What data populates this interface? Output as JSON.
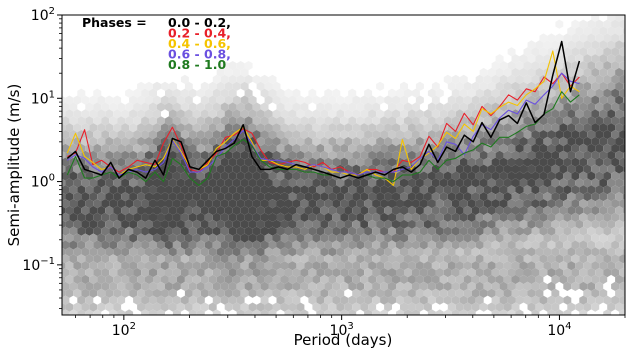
{
  "chart_data": {
    "type": "line",
    "xlabel": "Period (days)",
    "ylabel": "Semi-amplitude (m/s)",
    "xscale": "log",
    "yscale": "log",
    "xlim": [
      52,
      20000
    ],
    "ylim": [
      0.025,
      100
    ],
    "x_ticks": [
      {
        "value": 100,
        "base": "10",
        "exp": "2"
      },
      {
        "value": 1000,
        "base": "10",
        "exp": "3"
      },
      {
        "value": 10000,
        "base": "10",
        "exp": "4"
      }
    ],
    "y_ticks": [
      {
        "value": 0.1,
        "base": "10",
        "exp": "−1"
      },
      {
        "value": 1,
        "base": "10",
        "exp": "0"
      },
      {
        "value": 10,
        "base": "10",
        "exp": "1"
      },
      {
        "value": 100,
        "base": "10",
        "exp": "2"
      }
    ],
    "background": "hexbin density of individual measurements (grayscale)",
    "legend": {
      "position": "top-left",
      "title": "Phases = ",
      "entries": [
        {
          "label": "0.0 - 0.2,",
          "color": "#000000"
        },
        {
          "label": "0.2 - 0.4,",
          "color": "#e8202a"
        },
        {
          "label": "0.4 - 0.6,",
          "color": "#f5c400"
        },
        {
          "label": "0.6 - 0.8,",
          "color": "#6a50e0"
        },
        {
          "label": "0.8 - 1.0",
          "color": "#1f7a1f"
        }
      ]
    },
    "series": [
      {
        "color": "#000000",
        "x": [
          55,
          60,
          66,
          72,
          79,
          87,
          95,
          105,
          115,
          126,
          139,
          152,
          167,
          183,
          201,
          221,
          243,
          266,
          293,
          321,
          353,
          387,
          425,
          467,
          513,
          563,
          618,
          679,
          746,
          819,
          899,
          987,
          1084,
          1190,
          1307,
          1435,
          1576,
          1731,
          1900,
          2087,
          2291,
          2516,
          2763,
          3034,
          3331,
          3658,
          4017,
          4411,
          4843,
          5318,
          5840,
          6413,
          7042,
          7732,
          8491,
          9324,
          10238,
          11242,
          12345
        ],
        "values": [
          1.9,
          2.3,
          1.4,
          1.3,
          1.2,
          1.7,
          1.1,
          1.4,
          1.3,
          1.1,
          1.8,
          1.2,
          3.3,
          3.0,
          1.5,
          1.4,
          1.8,
          2.3,
          2.5,
          2.9,
          4.8,
          2.0,
          1.4,
          1.4,
          1.5,
          1.4,
          1.6,
          1.5,
          1.4,
          1.3,
          1.2,
          1.1,
          1.2,
          1.1,
          1.2,
          1.3,
          1.2,
          1.4,
          1.5,
          1.3,
          1.6,
          2.8,
          1.7,
          2.6,
          2.3,
          3.6,
          3.0,
          5.1,
          3.4,
          5.5,
          6.2,
          5.0,
          8.8,
          5.1,
          6.4,
          19,
          48,
          12,
          28
        ]
      },
      {
        "color": "#e8202a",
        "x": [
          55,
          60,
          66,
          72,
          79,
          87,
          95,
          105,
          115,
          126,
          139,
          152,
          167,
          183,
          201,
          221,
          243,
          266,
          293,
          321,
          353,
          387,
          425,
          467,
          513,
          563,
          618,
          679,
          746,
          819,
          899,
          987,
          1084,
          1190,
          1307,
          1435,
          1576,
          1731,
          1900,
          2087,
          2291,
          2516,
          2763,
          3034,
          3331,
          3658,
          4017,
          4411,
          4843,
          5318,
          5840,
          6413,
          7042,
          7732,
          8491,
          9324,
          10238,
          11242,
          12345
        ],
        "values": [
          2.0,
          2.2,
          4.2,
          1.6,
          1.8,
          1.5,
          1.3,
          1.5,
          1.8,
          1.7,
          1.6,
          2.9,
          4.5,
          2.7,
          1.4,
          1.3,
          1.7,
          2.2,
          3.4,
          3.6,
          4.3,
          3.8,
          2.4,
          1.7,
          1.6,
          1.7,
          1.8,
          1.7,
          1.5,
          1.7,
          1.4,
          1.5,
          1.3,
          1.2,
          1.4,
          1.4,
          1.3,
          1.3,
          1.8,
          1.7,
          2.0,
          3.5,
          2.6,
          5.0,
          4.0,
          6.6,
          4.8,
          8.0,
          6.2,
          8.0,
          11,
          9.5,
          13,
          12,
          18,
          15,
          20,
          14,
          18
        ]
      },
      {
        "color": "#f5c400",
        "x": [
          55,
          60,
          66,
          72,
          79,
          87,
          95,
          105,
          115,
          126,
          139,
          152,
          167,
          183,
          201,
          221,
          243,
          266,
          293,
          321,
          353,
          387,
          425,
          467,
          513,
          563,
          618,
          679,
          746,
          819,
          899,
          987,
          1084,
          1190,
          1307,
          1435,
          1576,
          1731,
          1900,
          2087,
          2291,
          2516,
          2763,
          3034,
          3331,
          3658,
          4017,
          4411,
          4843,
          5318,
          5840,
          6413,
          7042,
          7732,
          8491,
          9324,
          10238,
          11242,
          12345
        ],
        "values": [
          2.2,
          3.8,
          2.0,
          1.7,
          1.4,
          1.5,
          1.2,
          1.4,
          1.5,
          1.6,
          1.5,
          1.9,
          3.2,
          2.3,
          1.5,
          1.4,
          1.6,
          2.5,
          3.0,
          3.8,
          4.5,
          3.0,
          1.8,
          1.8,
          1.6,
          1.5,
          1.5,
          1.4,
          1.6,
          1.5,
          1.3,
          1.3,
          1.2,
          1.2,
          1.4,
          1.2,
          1.1,
          0.9,
          3.2,
          1.4,
          1.9,
          2.2,
          2.7,
          3.9,
          3.3,
          4.9,
          4.0,
          7.5,
          6.5,
          7.8,
          9.0,
          8.2,
          11,
          13,
          16,
          37,
          10,
          14,
          12
        ]
      },
      {
        "color": "#6a50e0",
        "x": [
          55,
          60,
          66,
          72,
          79,
          87,
          95,
          105,
          115,
          126,
          139,
          152,
          167,
          183,
          201,
          221,
          243,
          266,
          293,
          321,
          353,
          387,
          425,
          467,
          513,
          563,
          618,
          679,
          746,
          819,
          899,
          987,
          1084,
          1190,
          1307,
          1435,
          1576,
          1731,
          1900,
          2087,
          2291,
          2516,
          2763,
          3034,
          3331,
          3658,
          4017,
          4411,
          4843,
          5318,
          5840,
          6413,
          7042,
          7732,
          8491,
          9324,
          10238,
          11242,
          12345
        ],
        "values": [
          1.8,
          2.1,
          1.9,
          1.5,
          1.3,
          1.5,
          1.2,
          1.3,
          1.4,
          1.3,
          1.4,
          1.7,
          3.1,
          2.2,
          1.3,
          1.3,
          1.5,
          1.9,
          2.6,
          3.2,
          4.1,
          2.8,
          1.9,
          1.8,
          1.8,
          1.7,
          1.6,
          1.5,
          1.6,
          1.5,
          1.4,
          1.3,
          1.3,
          1.2,
          1.3,
          1.3,
          1.3,
          1.3,
          1.4,
          1.5,
          1.9,
          2.3,
          1.8,
          3.0,
          2.8,
          2.1,
          3.5,
          4.8,
          4.2,
          5.8,
          7.2,
          6.5,
          9.5,
          8.5,
          11,
          14,
          20,
          16,
          15
        ]
      },
      {
        "color": "#1f7a1f",
        "x": [
          55,
          60,
          66,
          72,
          79,
          87,
          95,
          105,
          115,
          126,
          139,
          152,
          167,
          183,
          201,
          221,
          243,
          266,
          293,
          321,
          353,
          387,
          425,
          467,
          513,
          563,
          618,
          679,
          746,
          819,
          899,
          987,
          1084,
          1190,
          1307,
          1435,
          1576,
          1731,
          1900,
          2087,
          2291,
          2516,
          2763,
          3034,
          3331,
          3658,
          4017,
          4411,
          4843,
          5318,
          5840,
          6413,
          7042,
          7732,
          8491,
          9324,
          10238,
          11242,
          12345
        ],
        "values": [
          1.2,
          2.0,
          1.1,
          1.1,
          1.2,
          1.3,
          1.1,
          1.3,
          1.2,
          1.0,
          1.3,
          1.0,
          1.9,
          1.6,
          1.1,
          0.9,
          1.1,
          2.0,
          2.2,
          2.7,
          3.2,
          2.7,
          1.8,
          1.5,
          1.4,
          1.4,
          1.4,
          1.3,
          1.3,
          1.2,
          1.2,
          1.1,
          1.2,
          1.1,
          1.2,
          1.1,
          1.1,
          1.0,
          1.2,
          1.2,
          1.3,
          1.8,
          1.4,
          1.8,
          1.9,
          2.2,
          2.4,
          2.9,
          2.6,
          3.4,
          3.4,
          3.9,
          4.6,
          4.9,
          6.5,
          7.5,
          12,
          9,
          11
        ]
      }
    ]
  }
}
